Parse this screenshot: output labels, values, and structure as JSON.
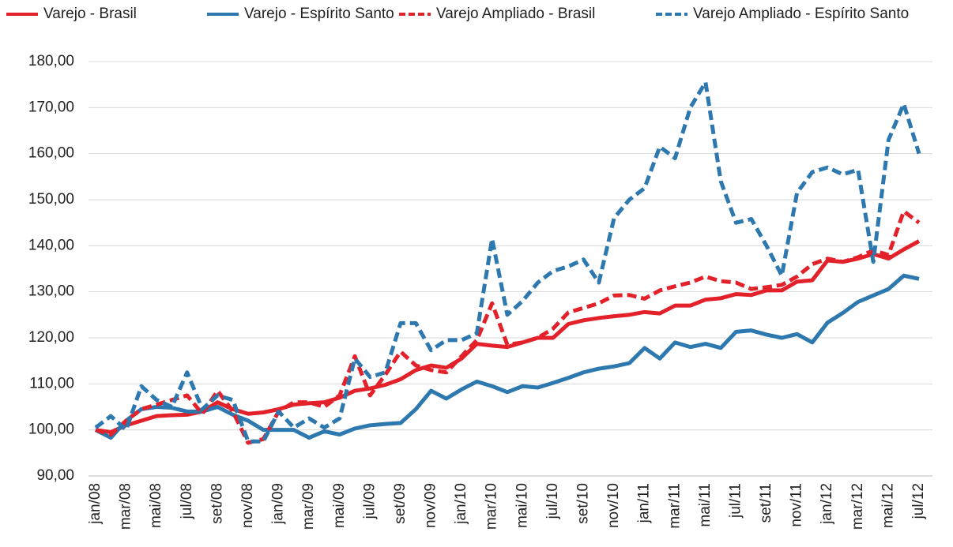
{
  "chart_data": {
    "type": "line",
    "categories": [
      "jan/08",
      null,
      "mar/08",
      null,
      "mai/08",
      null,
      "jul/08",
      null,
      "set/08",
      null,
      "nov/08",
      null,
      "jan/09",
      null,
      "mar/09",
      null,
      "mai/09",
      null,
      "jul/09",
      null,
      "set/09",
      null,
      "nov/09",
      null,
      "jan/10",
      null,
      "mar/10",
      null,
      "mai/10",
      null,
      "jul/10",
      null,
      "set/10",
      null,
      "nov/10",
      null,
      "jan/11",
      null,
      "mar/11",
      null,
      "mai/11",
      null,
      "jul/11",
      null,
      "set/11",
      null,
      "nov/11",
      null,
      "jan/12",
      null,
      "mar/12",
      null,
      "mai/12",
      null,
      "jul/12"
    ],
    "series": [
      {
        "name": "Varejo - Brasil",
        "color": "#e3212a",
        "style": "solid",
        "values": [
          100,
          99.5,
          101,
          102,
          103,
          103.2,
          103.3,
          104,
          106,
          104.5,
          103.5,
          103.8,
          104.5,
          105.5,
          105.8,
          106,
          107,
          108.5,
          109,
          109.8,
          111,
          113,
          114,
          113.5,
          115.5,
          118.7,
          118.3,
          118,
          119,
          120,
          120,
          123,
          123.8,
          124.3,
          124.7,
          125,
          125.6,
          125.3,
          127,
          127,
          128.3,
          128.6,
          129.5,
          129.3,
          130.3,
          130.3,
          132.2,
          132.5,
          136.8,
          136.5,
          137.2,
          138.2,
          137.2,
          139.2,
          141
        ]
      },
      {
        "name": "Varejo - Espírito Santo",
        "color": "#2e78b0",
        "style": "solid",
        "values": [
          100,
          98.3,
          102,
          104.5,
          105,
          104.8,
          104,
          104,
          105,
          103.3,
          102,
          100,
          100,
          100,
          98.3,
          99.7,
          99,
          100.3,
          101,
          101.3,
          101.5,
          104.5,
          108.5,
          106.8,
          108.8,
          110.5,
          109.5,
          108.2,
          109.5,
          109.2,
          110.2,
          111.3,
          112.5,
          113.3,
          113.8,
          114.5,
          117.8,
          115.5,
          119,
          118,
          118.7,
          117.8,
          121.3,
          121.6,
          120.7,
          120,
          120.8,
          119,
          123.3,
          125.4,
          127.8,
          129.2,
          130.6,
          133.5,
          132.8
        ]
      },
      {
        "name": "Varejo Ampliado - Brasil",
        "color": "#e3212a",
        "style": "dashed",
        "values": [
          100,
          99,
          102,
          104.5,
          105.5,
          106.5,
          107.5,
          103.5,
          108.5,
          104,
          97.2,
          98,
          104,
          106,
          106,
          105,
          107.5,
          116,
          107.5,
          112,
          117,
          114,
          113,
          112.5,
          116,
          119.5,
          127.5,
          118.5,
          119,
          120,
          122,
          125.5,
          126.5,
          127.5,
          129.2,
          129.3,
          128.5,
          130.3,
          131.2,
          132,
          133.3,
          132.3,
          132,
          130.6,
          131,
          131.5,
          133.3,
          136,
          137.2,
          136.5,
          137.5,
          139,
          138,
          147.5,
          145
        ]
      },
      {
        "name": "Varejo Ampliado - Espírito Santo",
        "color": "#2e78b0",
        "style": "dashed",
        "values": [
          100.5,
          103,
          100,
          109.5,
          106.5,
          105,
          112.5,
          104.5,
          107.5,
          106.5,
          97.5,
          97.5,
          104,
          100.5,
          102.5,
          100.5,
          102.5,
          115.5,
          111.5,
          112.5,
          123.2,
          123.2,
          117.3,
          119.5,
          119.5,
          121,
          141.5,
          125,
          128,
          132,
          134.5,
          135.5,
          137,
          132,
          146,
          150,
          152.5,
          161.5,
          159,
          170,
          175.5,
          154,
          145,
          145.8,
          140,
          133.5,
          151.5,
          156,
          157,
          155.5,
          156.5,
          136.5,
          163,
          170.8,
          160
        ]
      }
    ],
    "ylim": [
      90,
      180
    ],
    "yticks": [
      {
        "value": 90,
        "label": "90,00"
      },
      {
        "value": 100,
        "label": "100,00"
      },
      {
        "value": 110,
        "label": "110,00"
      },
      {
        "value": 120,
        "label": "120,00"
      },
      {
        "value": 130,
        "label": "130,00"
      },
      {
        "value": 140,
        "label": "140,00"
      },
      {
        "value": 150,
        "label": "150,00"
      },
      {
        "value": 160,
        "label": "160,00"
      },
      {
        "value": 170,
        "label": "170,00"
      },
      {
        "value": 180,
        "label": "180,00"
      }
    ],
    "grid": true,
    "legend": "top"
  }
}
